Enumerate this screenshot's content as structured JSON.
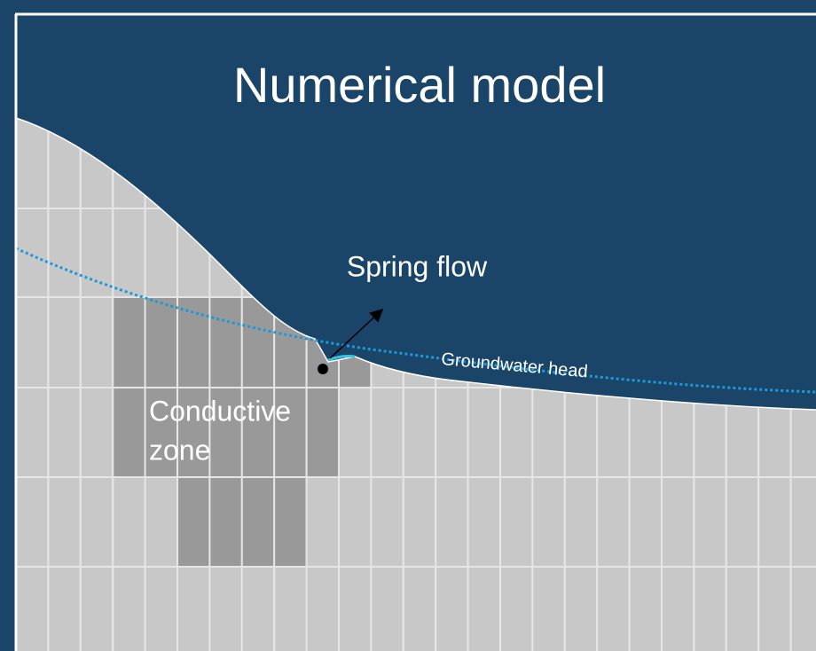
{
  "title": "Numerical model",
  "labels": {
    "spring_flow": "Spring flow",
    "groundwater_head": "Groundwater head",
    "conductive_zone": [
      "Conductive",
      "zone"
    ]
  }
}
